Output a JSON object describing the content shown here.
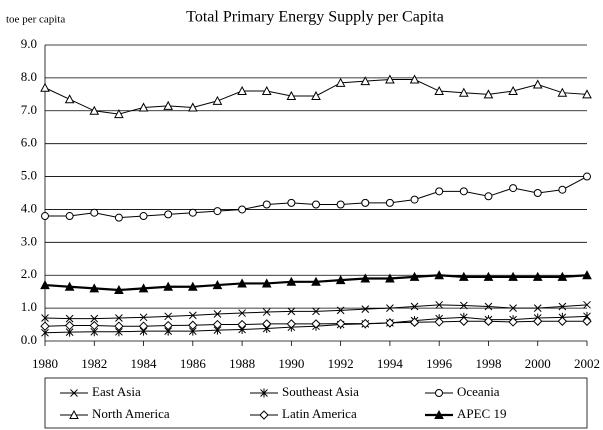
{
  "chart_data": {
    "type": "line",
    "title": "Total Primary Energy Supply per Capita",
    "y_label": "toe per capita",
    "x": [
      1980,
      1981,
      1982,
      1983,
      1984,
      1985,
      1986,
      1987,
      1988,
      1989,
      1990,
      1991,
      1992,
      1993,
      1994,
      1995,
      1996,
      1997,
      1998,
      1999,
      2000,
      2001,
      2002
    ],
    "xlim": [
      1980,
      2002
    ],
    "xticks": [
      1980,
      1982,
      1984,
      1986,
      1988,
      1990,
      1992,
      1994,
      1996,
      1998,
      2000,
      2002
    ],
    "ylim": [
      0,
      9
    ],
    "yticks": [
      {
        "value": 0,
        "label": "0.0"
      },
      {
        "value": 1,
        "label": "1.0"
      },
      {
        "value": 2,
        "label": "2.0"
      },
      {
        "value": 3,
        "label": "3.0"
      },
      {
        "value": 4,
        "label": "4.0"
      },
      {
        "value": 5,
        "label": "5.0"
      },
      {
        "value": 6,
        "label": "6.0"
      },
      {
        "value": 7,
        "label": "7.0"
      },
      {
        "value": 8,
        "label": "8.0"
      },
      {
        "value": 9,
        "label": "9.0"
      }
    ],
    "grid": true,
    "legend": "bottom",
    "series": [
      {
        "name": "East Asia",
        "color": "#000000",
        "marker": "x",
        "values": [
          0.7,
          0.68,
          0.68,
          0.7,
          0.72,
          0.75,
          0.78,
          0.82,
          0.85,
          0.88,
          0.9,
          0.9,
          0.93,
          0.97,
          1.0,
          1.05,
          1.1,
          1.08,
          1.05,
          1.0,
          1.0,
          1.05,
          1.1
        ]
      },
      {
        "name": "Southeast Asia",
        "color": "#000000",
        "marker": "star",
        "values": [
          0.25,
          0.27,
          0.28,
          0.28,
          0.3,
          0.3,
          0.3,
          0.33,
          0.35,
          0.38,
          0.42,
          0.45,
          0.5,
          0.52,
          0.55,
          0.62,
          0.68,
          0.72,
          0.65,
          0.65,
          0.7,
          0.72,
          0.75
        ]
      },
      {
        "name": "Oceania",
        "color": "#000000",
        "marker": "circle",
        "values": [
          3.8,
          3.8,
          3.9,
          3.75,
          3.8,
          3.85,
          3.9,
          3.95,
          4.0,
          4.15,
          4.2,
          4.15,
          4.15,
          4.2,
          4.2,
          4.3,
          4.55,
          4.55,
          4.4,
          4.65,
          4.5,
          4.6,
          5.0
        ]
      },
      {
        "name": "North America",
        "color": "#000000",
        "marker": "triangle",
        "values": [
          7.7,
          7.35,
          7.0,
          6.9,
          7.1,
          7.15,
          7.1,
          7.3,
          7.6,
          7.6,
          7.45,
          7.45,
          7.85,
          7.9,
          7.95,
          7.95,
          7.6,
          7.55,
          7.5,
          7.6,
          7.8,
          7.55,
          7.5
        ]
      },
      {
        "name": "Latin America",
        "color": "#000000",
        "marker": "diamond",
        "values": [
          0.45,
          0.47,
          0.47,
          0.45,
          0.45,
          0.47,
          0.48,
          0.5,
          0.5,
          0.52,
          0.52,
          0.52,
          0.53,
          0.53,
          0.55,
          0.57,
          0.58,
          0.6,
          0.6,
          0.58,
          0.6,
          0.6,
          0.6
        ]
      },
      {
        "name": "APEC 19",
        "color": "#000000",
        "marker": "triangle-filled",
        "values": [
          1.7,
          1.65,
          1.6,
          1.55,
          1.6,
          1.65,
          1.65,
          1.7,
          1.75,
          1.75,
          1.8,
          1.8,
          1.85,
          1.9,
          1.9,
          1.95,
          2.0,
          1.95,
          1.95,
          1.95,
          1.95,
          1.95,
          2.0
        ]
      }
    ]
  }
}
